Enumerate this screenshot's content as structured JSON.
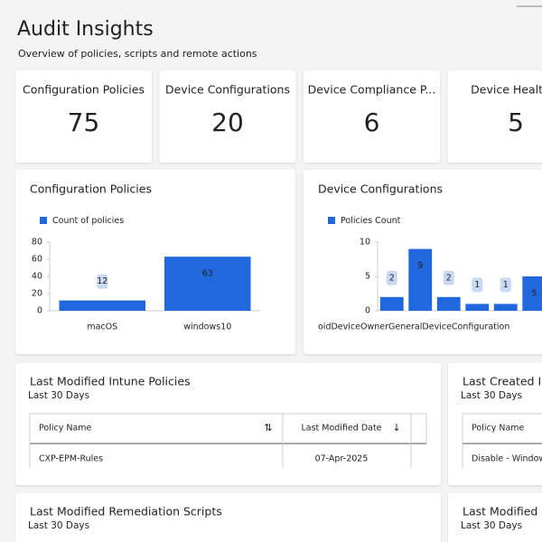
{
  "header": {
    "title": "Audit Insights",
    "subtitle": "Overview of policies, scripts and remote actions"
  },
  "kpis": [
    {
      "label": "Configuration Policies",
      "value": 75
    },
    {
      "label": "Device Configurations",
      "value": 20
    },
    {
      "label": "Device Compliance P...",
      "value": 6
    },
    {
      "label": "Device Health S",
      "value": 5
    }
  ],
  "chart_data": [
    {
      "type": "bar",
      "title": "Configuration Policies",
      "legend": "Count of policies",
      "color": "#2168de",
      "categories": [
        "macOS",
        "windows10"
      ],
      "values": [
        12,
        63
      ],
      "ylim": [
        0,
        80
      ],
      "yticks": [
        0,
        20,
        40,
        60,
        80
      ]
    },
    {
      "type": "bar",
      "title": "Device Configurations",
      "legend": "Policies Count",
      "color": "#2168de",
      "categories": [
        "oidDeviceOwnerGeneralDeviceConfiguration",
        null,
        null,
        null,
        null,
        null
      ],
      "values": [
        2,
        9,
        2,
        1,
        1,
        5
      ],
      "ylim": [
        0,
        10
      ],
      "yticks": [
        0,
        5,
        10
      ]
    }
  ],
  "tables": [
    {
      "title": "Last Modified Intune Policies",
      "subtitle": "Last 30 Days",
      "columns": [
        "Policy Name",
        "Last Modified Date"
      ],
      "rows": [
        [
          "CXP-EPM-Rules",
          "07-Apr-2025"
        ]
      ]
    },
    {
      "title": "Last Created Int",
      "subtitle": "Last 30 Days",
      "columns": [
        "Policy Name"
      ],
      "rows": [
        [
          "Disable - Windows"
        ]
      ]
    },
    {
      "title": "Last Modified Remediation Scripts",
      "subtitle": "Last 30 Days",
      "columns": [],
      "rows": []
    },
    {
      "title": "Last Modified Sc",
      "subtitle": "Last 30 Days",
      "columns": [],
      "rows": []
    }
  ]
}
